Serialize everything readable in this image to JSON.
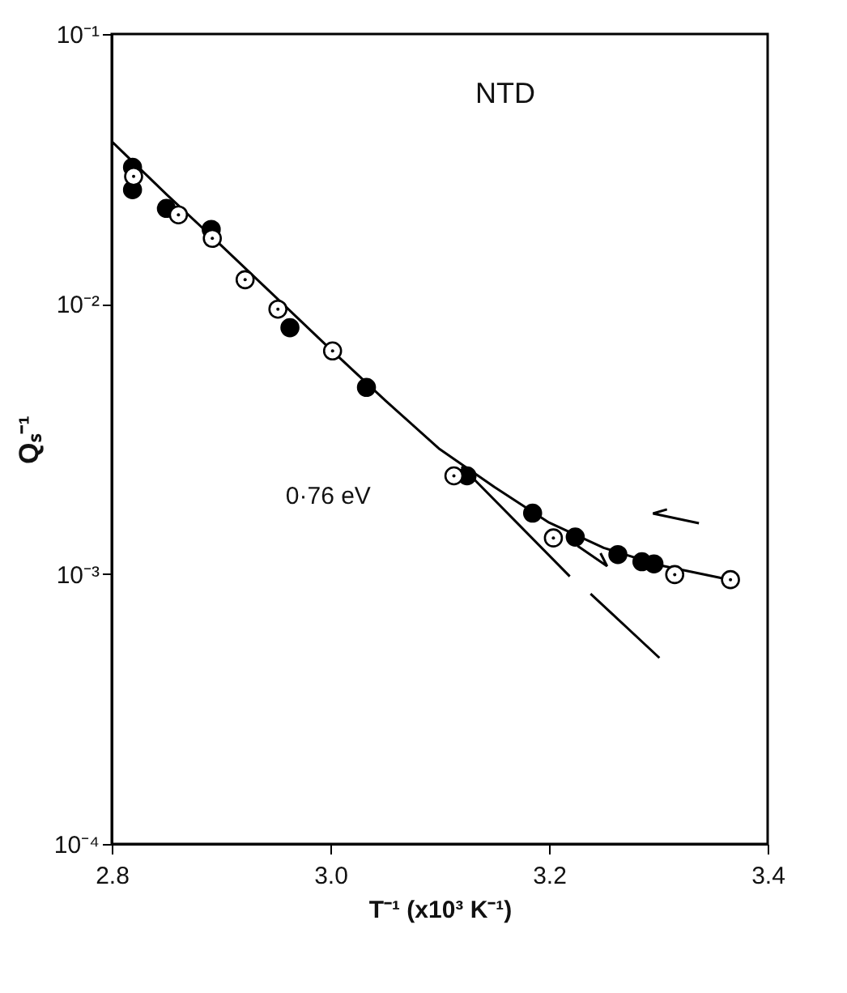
{
  "chart_data": {
    "type": "scatter",
    "xlabel": "T⁻¹ (x10³ K⁻¹)",
    "ylabel": "Qₛ⁻¹",
    "log": "y",
    "grid": false,
    "xlim": [
      2.8,
      3.4
    ],
    "ylim": [
      0.0001,
      0.1
    ],
    "xticks": [
      {
        "value": 2.8,
        "label": "2.8"
      },
      {
        "value": 3.0,
        "label": "3.0"
      },
      {
        "value": 3.2,
        "label": "3.2"
      },
      {
        "value": 3.4,
        "label": "3.4"
      }
    ],
    "yticks": [
      {
        "value": 0.0001,
        "label": "10⁻⁴"
      },
      {
        "value": 0.001,
        "label": "10⁻³"
      },
      {
        "value": 0.01,
        "label": "10⁻²"
      },
      {
        "value": 0.1,
        "label": "10⁻¹"
      }
    ],
    "annotations": [
      "NTD",
      "0·76 eV"
    ],
    "series": [
      {
        "type": "line",
        "color": "#000000",
        "line_style": "solid",
        "x": [
          2.8,
          2.85,
          2.9,
          2.95,
          3.0,
          3.05,
          3.1,
          3.15,
          3.2,
          3.25,
          3.3,
          3.366
        ],
        "values": [
          0.04,
          0.0255,
          0.0165,
          0.0106,
          0.0068,
          0.0044,
          0.0029,
          0.0021,
          0.00155,
          0.00125,
          0.00108,
          0.00095
        ]
      },
      {
        "type": "line",
        "color": "#000000",
        "line_style": "solid",
        "x": [
          3.12,
          3.219,
          3.228,
          3.238,
          3.301
        ],
        "values": [
          0.0025,
          0.00098,
          null,
          0.000845,
          0.000489
        ]
      },
      {
        "marker": "circle",
        "color": "#000000",
        "x": [
          2.819,
          2.819,
          2.85,
          2.891,
          2.963,
          3.033,
          3.125,
          3.185,
          3.224,
          3.263,
          3.285,
          3.296
        ],
        "values": [
          0.0321,
          0.0265,
          0.0226,
          0.0189,
          0.00817,
          0.00491,
          0.00231,
          0.00168,
          0.00137,
          0.00118,
          0.00111,
          0.00109
        ]
      },
      {
        "marker": "circle",
        "color": "#ffffff",
        "x": [
          2.82,
          2.861,
          2.892,
          2.922,
          2.952,
          3.002,
          3.113,
          3.204,
          3.315,
          3.366
        ],
        "values": [
          0.0297,
          0.0214,
          0.0175,
          0.0123,
          0.00957,
          0.0067,
          0.00231,
          0.00136,
          0.000995,
          0.000953
        ]
      }
    ]
  }
}
